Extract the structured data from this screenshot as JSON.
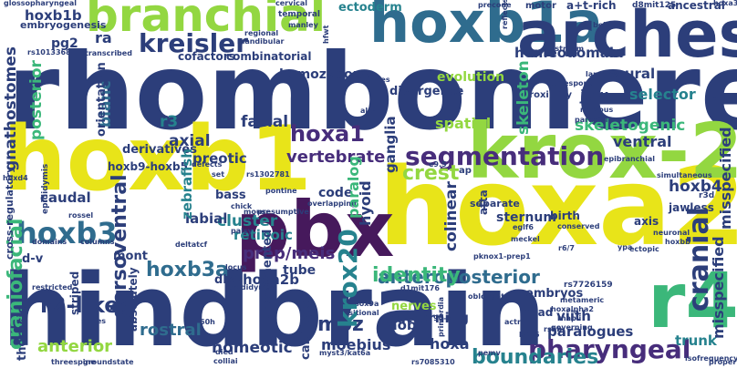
{
  "palette": {
    "navy": "#2c3e7a",
    "blue": "#2f6c8e",
    "teal": "#26828e",
    "green": "#3bb77a",
    "lime": "#93d741",
    "yellow": "#e8e419",
    "purple": "#472d7b",
    "dark": "#46195c"
  },
  "words": {
    "rhombomeres": "rhombomeres",
    "hindbrain": "hindbrain",
    "hoxa2": "hoxa2",
    "hoxb1_big": "hoxb1",
    "krox20_dash": "krox-20",
    "hoxb1a": "hoxb1a",
    "arches": "arches",
    "pbx": "pbx",
    "r4": "r4",
    "branchial": "branchial",
    "segmentation": "segmentation",
    "kreisler": "kreisler",
    "hoxb3": "hoxb3",
    "hoxa1": "hoxa1",
    "crest": "crest",
    "cranial": "cranial",
    "krox20": "krox20",
    "pharyngeal": "pharyngeal",
    "r2like": "r2-like",
    "hoxb3a": "hoxb3a",
    "prepmeis": "prep/meis",
    "anteroposterior": "anteroposterior",
    "boundaries": "boundaries",
    "craniofacial": "craniofacial",
    "moz": "moz",
    "identity": "identity",
    "vertebrate": "vertebrate",
    "axial": "axial",
    "facial": "facial",
    "hoxb1b": "hoxb1b",
    "ectoderm": "ectoderm",
    "pg2": "pg2",
    "gnathostomes": "gnathostomes",
    "posterior": "posterior",
    "r3": "r3",
    "blanc": "blanc",
    "jaw": "jaw",
    "selector": "selector",
    "skeletogenic": "skeletogenic",
    "skeleton": "skeleton",
    "spatial": "spatial",
    "hoxb4": "hoxb4",
    "ventral": "ventral",
    "misspecified": "misspecified",
    "cluster": "cluster",
    "caudal": "caudal",
    "hyoid": "hyoid",
    "colinear": "colinear",
    "paralog": "paralog",
    "labial": "labial",
    "retinoic": "retinoic",
    "dorsoventral": "dorsoventral",
    "hoxa2b": "hoxa2b",
    "mob": "mob",
    "moebius": "moebius",
    "hoxa": "hoxa",
    "homeotic": "homeotic",
    "rostral": "rostral",
    "anterior": "anterior",
    "paralogues": "paralogues",
    "viith": "viith",
    "trunk": "trunk",
    "r5": "r5",
    "cartilage": "cartilage",
    "patterning": "patterning",
    "embryos": "embryos",
    "homeodomain": "homeodomain",
    "neural": "neural",
    "evolution": "evolution",
    "divergence": "divergence",
    "homozygous": "homozygous",
    "combinatorial": "combinatorial",
    "cofactors": "cofactors",
    "ra": "ra",
    "zebrafish": "zebrafish",
    "preotic": "preotic",
    "orientation": "orientation",
    "derivatives": "derivatives",
    "hoxb9hoxb5": "hoxb9-hoxb5",
    "bass": "bass",
    "tube": "tube",
    "mont": "mont",
    "dv": "d-v",
    "r2": "r2",
    "ganglia": "ganglia",
    "code": "code",
    "separate": "separate",
    "sternum": "sternum",
    "atta": "atta",
    "birth": "birth",
    "axis": "axis",
    "jawless": "jawless",
    "striped": "striped",
    "absolutely": "absolutely",
    "dlx2": "dlx2",
    "unsegmented": "unsegmented",
    "nerves": "nerves",
    "thoracic": "thoracic",
    "head": "head",
    "embryogenesis": "embryogenesis",
    "glossopharyngeal": "glossopharyngeal",
    "a_t_rich": "a+t-rich",
    "motor": "motor",
    "ancestral": "ancestral",
    "hoxa3": "hoxa3",
    "reflects": "reflects",
    "precode": "precode",
    "d8mit125": "d8mit125",
    "cervical": "cervical",
    "temporal": "temporal",
    "manley": "manley",
    "regional": "regional",
    "mandibular": "mandibular",
    "hfwt": "hfwt",
    "rs1013368": "rs1013368",
    "transcribed": "transcribed",
    "structures": "structures",
    "upstream": "upstream",
    "correspond": "correspond",
    "lamprey": "lamprey",
    "proximity": "proximity",
    "nervous": "nervous",
    "paraxial": "paraxial",
    "cns": "cns",
    "alx4": "alx4",
    "epibranchial": "epibranchial",
    "pontine": "pontine",
    "chick": "chick",
    "rossel": "rossel",
    "hoxd4": "hoxd4",
    "defects": "defects",
    "cross_regulatory": "cross-regulatory",
    "epididymis": "epididymis",
    "mouse": "mouse",
    "domains": "domains",
    "columns": "columns",
    "deltatcf": "deltatcf",
    "palsy": "palsy",
    "locus": "locus",
    "rs1302781": "rs1302781",
    "presumptive": "presumptive",
    "overlapping": "overlapping",
    "d1mit176": "d1mit176",
    "oblongata": "oblongata",
    "pknox1_prep1": "pknox1-prep1",
    "eglf6": "eglf6",
    "meckel": "meckel",
    "conserved": "conserved",
    "neuronal": "neuronal",
    "hoxbb": "hoxbb",
    "r6_7": "r6/7",
    "ectopic": "ectopic",
    "rs7726159": "rs7726159",
    "metameric": "metameric",
    "hoxalpha2": "hoxalpha2",
    "rnapii": "rnapii",
    "governing": "governing",
    "isofrequency": "isofrequency",
    "proper": "proper",
    "b926": "b926",
    "pemv": "pemv",
    "sox9a": "sox9a",
    "positional": "positional",
    "_90kb": "90-kb",
    "myst3": "myst3/kat6a",
    "colliai": "colliai",
    "died": "died",
    "rs7085310": "rs7085310",
    "_60h": "60h",
    "series": "series",
    "groundstate": "groundstate",
    "threespine": "threespine",
    "restricted": "restricted",
    "epididymal": "epididymal",
    "actr": "actr",
    "rshb": "rshb",
    "e9_5": "e9.5",
    "ap": "ap",
    "simultaneous": "simultaneous",
    "r3d": "r3d",
    "set": "set",
    "primordia": "primordia",
    "bell": "bell",
    "ypa": "ypa"
  }
}
